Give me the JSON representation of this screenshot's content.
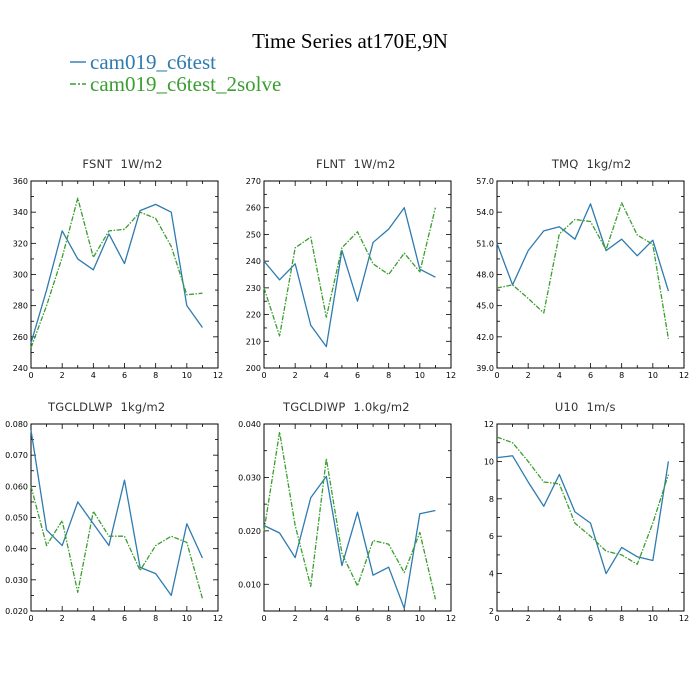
{
  "title": "Time Series at170E,9N",
  "colors": {
    "series1": "#2e7bb0",
    "series2": "#3a9e2f"
  },
  "legend": [
    {
      "name": "cam019_c6test",
      "color": "#2e7bb0",
      "style": "solid"
    },
    {
      "name": "cam019_c6test_2solve",
      "color": "#3a9e2f",
      "style": "dashed"
    }
  ],
  "chart_data": [
    {
      "type": "line",
      "title": "FSNT",
      "unit": "1W/m2",
      "x": [
        0,
        1,
        2,
        3,
        4,
        5,
        6,
        7,
        8,
        9,
        10,
        11
      ],
      "xlim": [
        0,
        12
      ],
      "xticks": [
        "0",
        "2",
        "4",
        "6",
        "8",
        "10",
        "12"
      ],
      "ylim": [
        240,
        360
      ],
      "yticks": [
        "240",
        "260",
        "280",
        "300",
        "320",
        "340",
        "360"
      ],
      "series": [
        {
          "name": "cam019_c6test",
          "values": [
            256,
            290,
            328,
            310,
            303,
            326,
            307,
            341,
            345,
            340,
            280,
            266
          ]
        },
        {
          "name": "cam019_c6test_2solve",
          "values": [
            253,
            280,
            311,
            349,
            311,
            328,
            329,
            340,
            336,
            318,
            287,
            288
          ]
        }
      ]
    },
    {
      "type": "line",
      "title": "FLNT",
      "unit": "1W/m2",
      "x": [
        0,
        1,
        2,
        3,
        4,
        5,
        6,
        7,
        8,
        9,
        10,
        11
      ],
      "xlim": [
        0,
        12
      ],
      "xticks": [
        "0",
        "2",
        "4",
        "6",
        "8",
        "10",
        "12"
      ],
      "ylim": [
        200,
        270
      ],
      "yticks": [
        "200",
        "210",
        "220",
        "230",
        "240",
        "250",
        "260",
        "270"
      ],
      "series": [
        {
          "name": "cam019_c6test",
          "values": [
            240,
            233,
            239,
            216,
            208,
            244,
            225,
            247,
            252,
            260,
            237,
            234
          ]
        },
        {
          "name": "cam019_c6test_2solve",
          "values": [
            230,
            212,
            245,
            249,
            219,
            245,
            251,
            239,
            235,
            243,
            236,
            260
          ]
        }
      ]
    },
    {
      "type": "line",
      "title": "TMQ",
      "unit": "1kg/m2",
      "x": [
        0,
        1,
        2,
        3,
        4,
        5,
        6,
        7,
        8,
        9,
        10,
        11
      ],
      "xlim": [
        0,
        12
      ],
      "xticks": [
        "0",
        "2",
        "4",
        "6",
        "8",
        "10",
        "12"
      ],
      "ylim": [
        39,
        57
      ],
      "yticks": [
        "39.0",
        "42.0",
        "45.0",
        "48.0",
        "51.0",
        "54.0",
        "57.0"
      ],
      "series": [
        {
          "name": "cam019_c6test",
          "values": [
            51.0,
            47.0,
            50.3,
            52.2,
            52.6,
            51.4,
            54.8,
            50.3,
            51.4,
            49.8,
            51.3,
            46.4
          ]
        },
        {
          "name": "cam019_c6test_2solve",
          "values": [
            46.7,
            47.0,
            45.7,
            44.3,
            51.9,
            53.3,
            53.1,
            50.4,
            54.9,
            51.8,
            50.9,
            41.8
          ]
        }
      ]
    },
    {
      "type": "line",
      "title": "TGCLDLWP",
      "unit": "1kg/m2",
      "x": [
        0,
        1,
        2,
        3,
        4,
        5,
        6,
        7,
        8,
        9,
        10,
        11
      ],
      "xlim": [
        0,
        12
      ],
      "xticks": [
        "0",
        "2",
        "4",
        "6",
        "8",
        "10",
        "12"
      ],
      "ylim": [
        0.02,
        0.08
      ],
      "yticks": [
        "0.020",
        "0.030",
        "0.040",
        "0.050",
        "0.060",
        "0.070",
        "0.080"
      ],
      "series": [
        {
          "name": "cam019_c6test",
          "values": [
            0.078,
            0.046,
            0.041,
            0.055,
            0.048,
            0.041,
            0.062,
            0.034,
            0.032,
            0.025,
            0.048,
            0.037
          ]
        },
        {
          "name": "cam019_c6test_2solve",
          "values": [
            0.06,
            0.041,
            0.049,
            0.026,
            0.052,
            0.044,
            0.044,
            0.033,
            0.041,
            0.044,
            0.042,
            0.024
          ]
        }
      ]
    },
    {
      "type": "line",
      "title": "TGCLDIWP",
      "unit": "1.0kg/m2",
      "x": [
        0,
        1,
        2,
        3,
        4,
        5,
        6,
        7,
        8,
        9,
        10,
        11
      ],
      "xlim": [
        0,
        12
      ],
      "xticks": [
        "0",
        "2",
        "4",
        "6",
        "8",
        "10",
        "12"
      ],
      "ylim": [
        0.005,
        0.04
      ],
      "yticks": [
        "0.010",
        "0.020",
        "0.030",
        "0.040"
      ],
      "series": [
        {
          "name": "cam019_c6test",
          "values": [
            0.021,
            0.0196,
            0.015,
            0.0262,
            0.0302,
            0.0135,
            0.0235,
            0.0117,
            0.0132,
            0.0055,
            0.0232,
            0.0238
          ]
        },
        {
          "name": "cam019_c6test_2solve",
          "values": [
            0.02,
            0.0385,
            0.021,
            0.0096,
            0.0335,
            0.0158,
            0.0097,
            0.0182,
            0.0175,
            0.0122,
            0.0197,
            0.0072
          ]
        }
      ]
    },
    {
      "type": "line",
      "title": "U10",
      "unit": "1m/s",
      "x": [
        0,
        1,
        2,
        3,
        4,
        5,
        6,
        7,
        8,
        9,
        10,
        11
      ],
      "xlim": [
        0,
        12
      ],
      "xticks": [
        "0",
        "2",
        "4",
        "6",
        "8",
        "10",
        "12"
      ],
      "ylim": [
        2,
        12
      ],
      "yticks": [
        "2",
        "4",
        "6",
        "8",
        "10",
        "12"
      ],
      "series": [
        {
          "name": "cam019_c6test",
          "values": [
            10.2,
            10.3,
            8.9,
            7.6,
            9.3,
            7.3,
            6.7,
            4.0,
            5.4,
            4.9,
            4.7,
            10.0
          ]
        },
        {
          "name": "cam019_c6test_2solve",
          "values": [
            11.3,
            11.0,
            10.0,
            8.9,
            8.8,
            6.7,
            6.0,
            5.2,
            5.0,
            4.5,
            6.7,
            9.3
          ]
        }
      ]
    }
  ]
}
